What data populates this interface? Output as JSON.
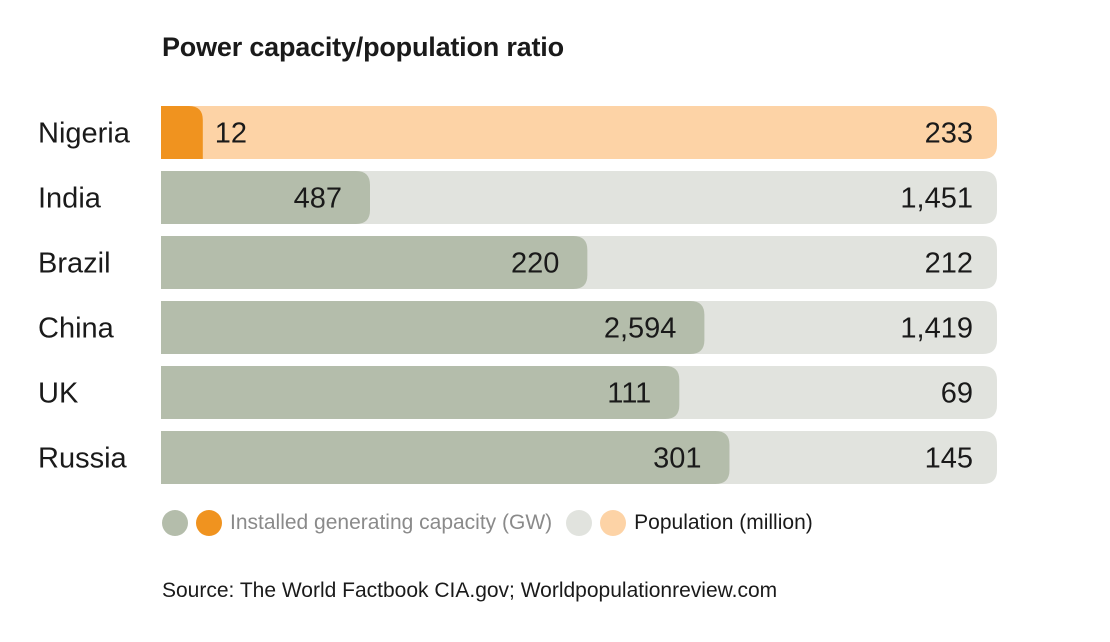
{
  "chart_data": {
    "type": "bar",
    "title": "Power capacity/population ratio",
    "categories": [
      "Nigeria",
      "India",
      "Brazil",
      "China",
      "UK",
      "Russia"
    ],
    "series": [
      {
        "name": "Installed generating capacity (GW)",
        "values": [
          12,
          487,
          220,
          2594,
          111,
          301
        ],
        "labels": [
          "12",
          "487",
          "220",
          "2,594",
          "111",
          "301"
        ],
        "fill_ratio": [
          0.05,
          0.25,
          0.51,
          0.65,
          0.62,
          0.68
        ]
      },
      {
        "name": "Population (million)",
        "values": [
          233,
          1451,
          212,
          1419,
          69,
          145
        ],
        "labels": [
          "233",
          "1,451",
          "212",
          "1,419",
          "69",
          "145"
        ]
      }
    ],
    "highlight_category": "Nigeria",
    "legend_position": "bottom-left",
    "source": "Source: The World Factbook CIA.gov; Worldpopulationreview.com"
  },
  "colors": {
    "capacity": "#b4bdab",
    "population": "#e1e3de",
    "capacity_highlight": "#f0931f",
    "population_highlight": "#fdd3a6",
    "text": "#1a1a1a",
    "muted_text": "#8a8a8a"
  }
}
